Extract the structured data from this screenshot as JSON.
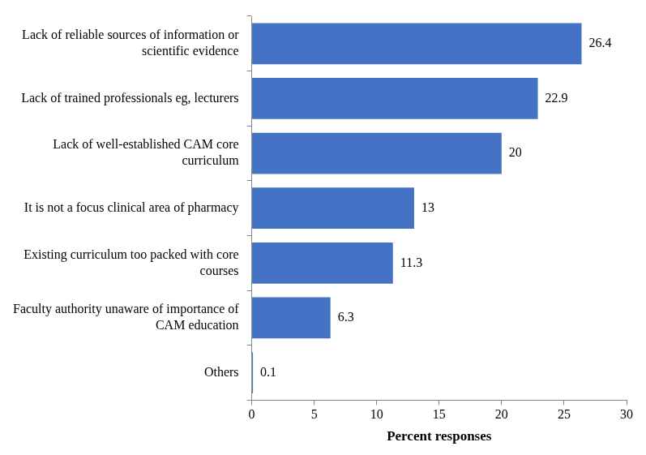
{
  "chart_data": {
    "type": "bar",
    "orientation": "horizontal",
    "x_label": "Percent responses",
    "categories": [
      "Lack of reliable sources of information or scientific evidence",
      "Lack of trained professionals eg, lecturers",
      "Lack of well-established CAM core curriculum",
      "It is not a focus clinical area of pharmacy",
      "Existing curriculum too packed with core courses",
      "Faculty authority unaware of importance of CAM education",
      "Others"
    ],
    "values": [
      26.4,
      22.9,
      20,
      13,
      11.3,
      6.3,
      0.1
    ],
    "color": "#4472c4",
    "xlim": [
      0,
      30
    ],
    "xticks": [
      0,
      5,
      10,
      15,
      20,
      25,
      30
    ],
    "grid": false,
    "data_labels": true
  }
}
